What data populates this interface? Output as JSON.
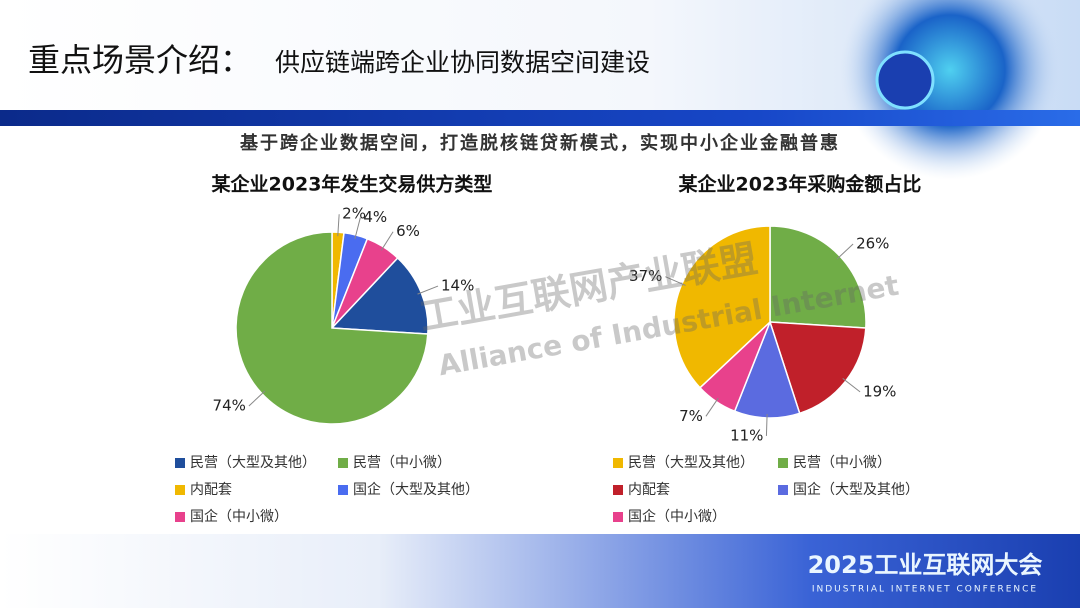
{
  "title": "重点场景介绍：",
  "title_detail": "供应链端跨企业协同数据空间建设",
  "subtitle": "基于跨企业数据空间，打造脱核链贷新模式，实现中小企业金融普惠",
  "watermark": {
    "cn": "工业互联网产业联盟",
    "en": "Alliance of Industrial Internet"
  },
  "footer": {
    "title": "2025工业互联网大会",
    "subtitle": "INDUSTRIAL INTERNET CONFERENCE"
  },
  "chart_data": [
    {
      "type": "pie",
      "title": "某企业2023年发生交易供方类型",
      "categories": [
        "民营（大型及其他）",
        "民营（中小微）",
        "内配套",
        "国企（大型及其他）",
        "国企（中小微）"
      ],
      "values": [
        14,
        74,
        2,
        4,
        6
      ],
      "value_labels": [
        "14%",
        "74%",
        "2%",
        "4%",
        "6%"
      ],
      "colors": [
        "#1f4e9c",
        "#70ad47",
        "#f0b800",
        "#4a6cf0",
        "#e8418c"
      ]
    },
    {
      "type": "pie",
      "title": "某企业2023年采购金额占比",
      "categories": [
        "民营（大型及其他）",
        "民营（中小微）",
        "内配套",
        "国企（大型及其他）",
        "国企（中小微）"
      ],
      "values": [
        37,
        26,
        19,
        11,
        7
      ],
      "value_labels": [
        "37%",
        "26%",
        "19%",
        "11%",
        "7%"
      ],
      "colors": [
        "#f0b800",
        "#70ad47",
        "#c0202a",
        "#5b6be0",
        "#e8418c"
      ]
    }
  ]
}
